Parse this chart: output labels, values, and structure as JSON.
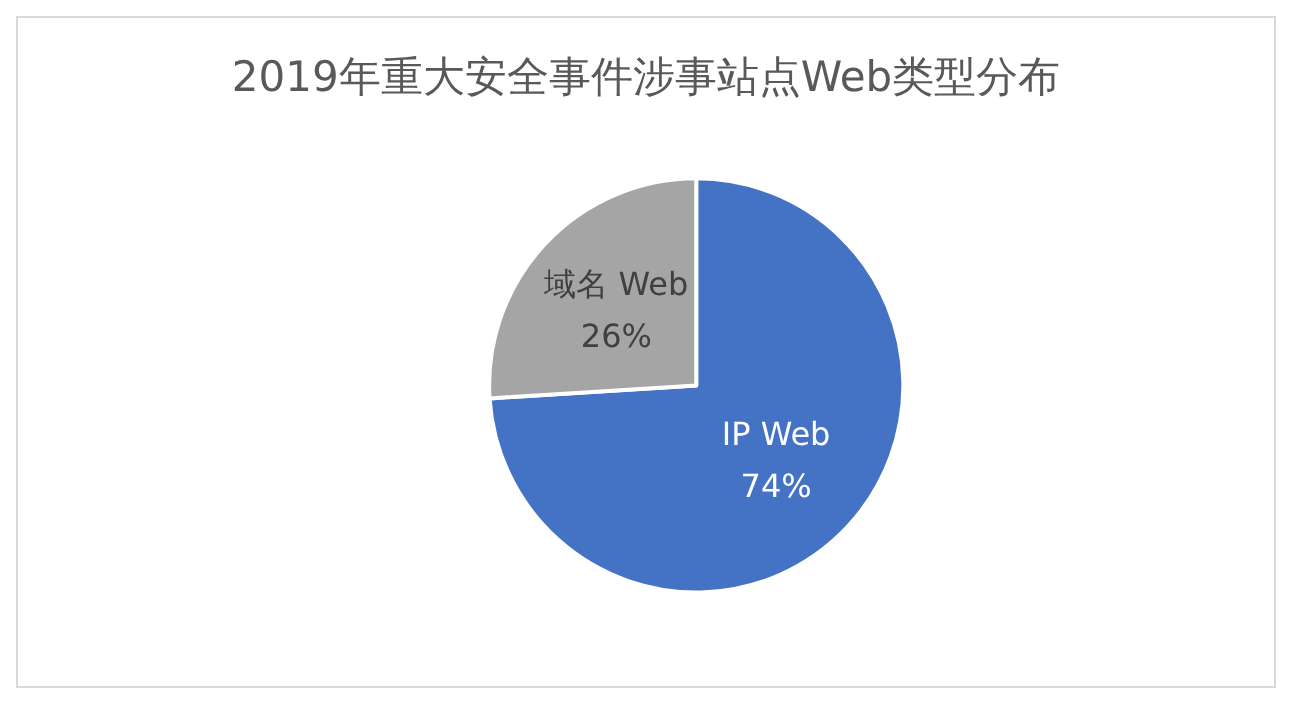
{
  "chart_data": {
    "type": "pie",
    "title": "2019年重大安全事件涉事站点Web类型分布",
    "categories": [
      "IP Web",
      "域名 Web"
    ],
    "values": [
      74,
      26
    ],
    "colors": [
      "#4472c4",
      "#a5a5a5"
    ],
    "value_labels": [
      "74%",
      "26%"
    ],
    "legend": false
  }
}
